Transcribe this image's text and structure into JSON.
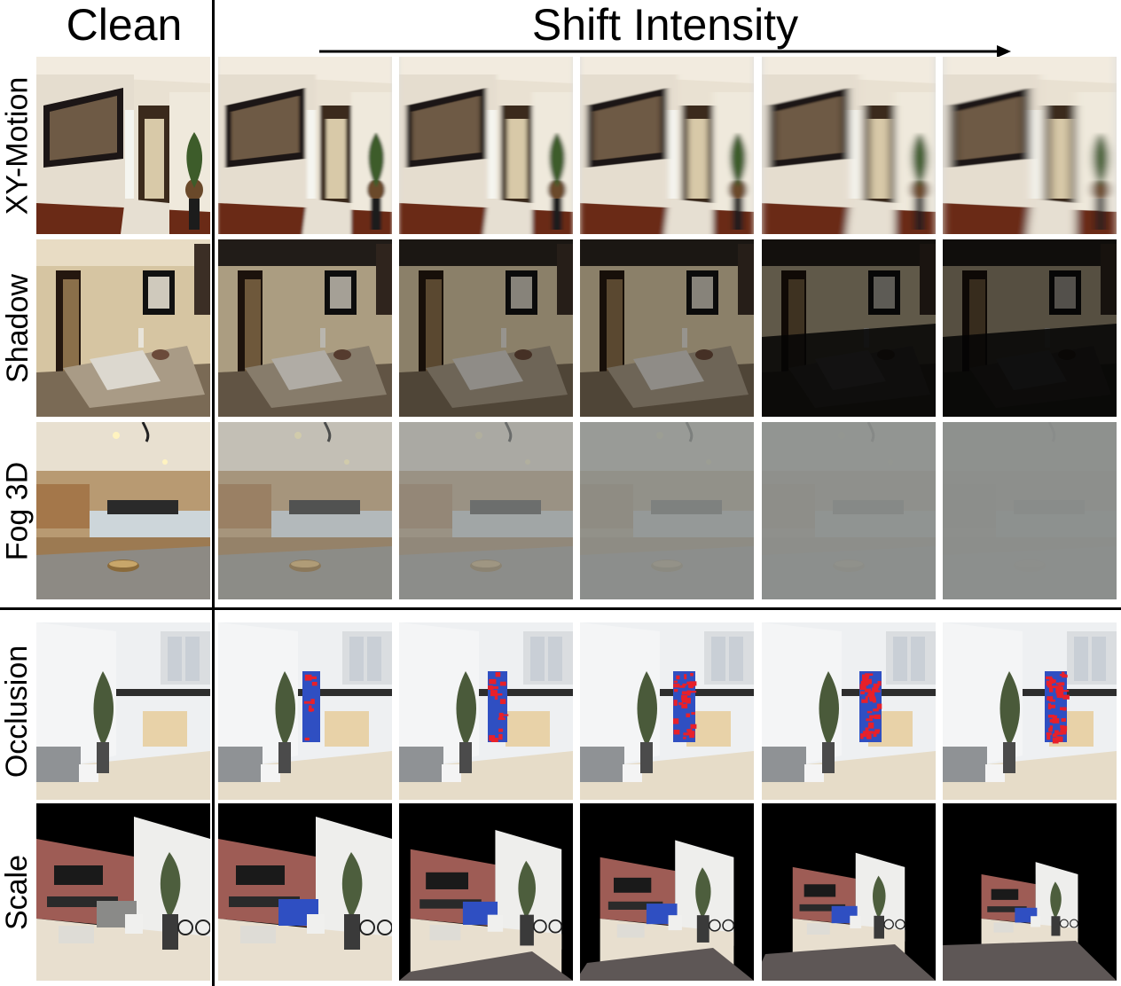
{
  "header": {
    "clean_label": "Clean",
    "shift_label": "Shift Intensity"
  },
  "rows": [
    {
      "label": "XY-Motion"
    },
    {
      "label": "Shadow"
    },
    {
      "label": "Fog 3D"
    },
    {
      "label": "Occlusion"
    },
    {
      "label": "Scale"
    }
  ],
  "colors": {
    "divider": "#000000",
    "occlusion_blue": "#2f4fc2",
    "occlusion_red": "#e8202a"
  }
}
